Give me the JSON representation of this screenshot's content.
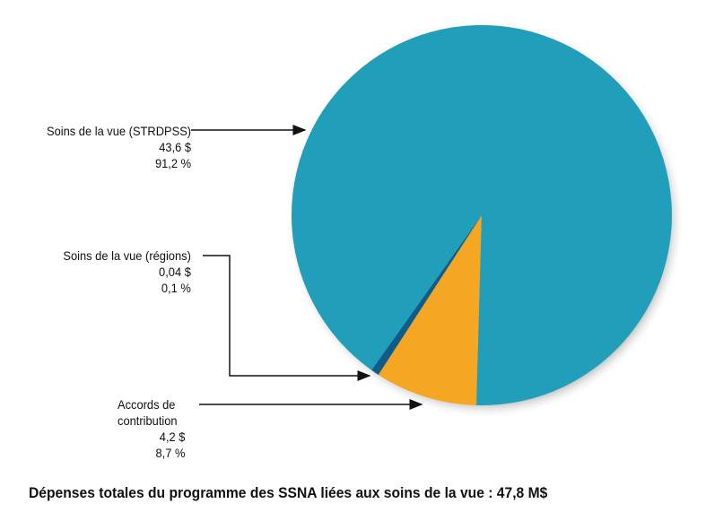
{
  "chart_data": {
    "type": "pie",
    "title": "Dépenses totales du programme des SSNA liées aux soins de la vue : 47,8 M$",
    "slices": [
      {
        "name": "Accords de contribution",
        "value": 4.2,
        "percent": 8.7,
        "value_label": "4,2 $",
        "percent_label": "8,7 %",
        "color": "#f5a623"
      },
      {
        "name": "Soins de la vue (régions)",
        "value": 0.04,
        "percent": 0.1,
        "value_label": "0,04 $",
        "percent_label": "0,1 %",
        "color": "#0f5c8a"
      },
      {
        "name": "Soins de la vue (STRDPSS)",
        "value": 43.6,
        "percent": 91.2,
        "value_label": "43,6 $",
        "percent_label": "91,2 %",
        "color": "#219eba"
      }
    ],
    "label_lines": {
      "strdpss": [
        "Soins de la vue (STRDPSS)"
      ],
      "regions": [
        "Soins de la vue (régions)"
      ],
      "contrib": [
        "Accords de",
        "contribution"
      ]
    }
  }
}
